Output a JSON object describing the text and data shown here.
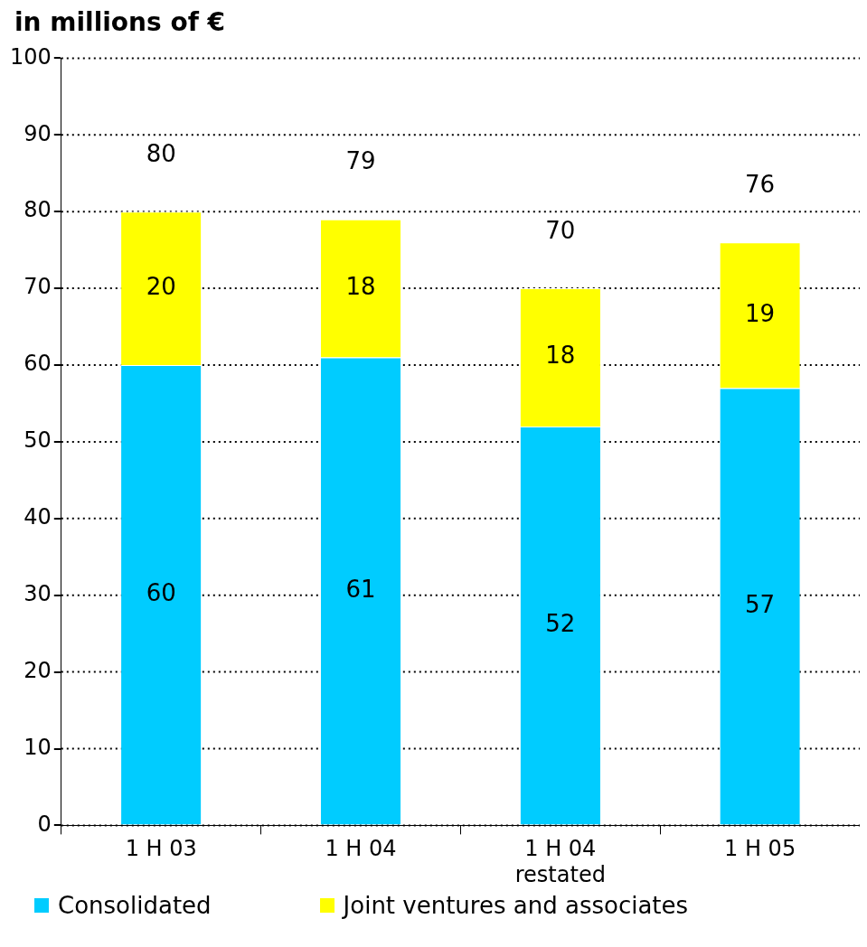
{
  "chart_data": {
    "type": "bar",
    "title": "in millions of €",
    "categories": [
      "1 H 03",
      "1 H 04",
      "1 H 04\nrestated",
      "1 H 05"
    ],
    "stacked": true,
    "series": [
      {
        "name": "Consolidated",
        "color": "#00ccff",
        "values": [
          60,
          61,
          52,
          57
        ]
      },
      {
        "name": "Joint ventures and associates",
        "color": "#ffff00",
        "values": [
          20,
          18,
          18,
          19
        ]
      }
    ],
    "totals": [
      "80",
      "79",
      "70",
      "76"
    ],
    "data_labels": true,
    "ylim": [
      0,
      100
    ],
    "yticks": [
      0,
      10,
      20,
      30,
      40,
      50,
      60,
      70,
      80,
      90,
      100
    ],
    "grid": "y",
    "line_style": "dotted",
    "legend": "bottom left"
  }
}
